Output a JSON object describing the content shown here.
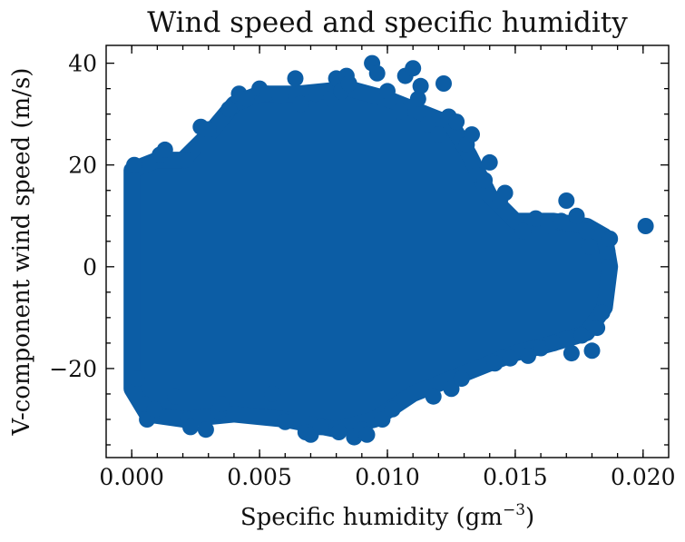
{
  "chart_data": {
    "type": "scatter",
    "title": "Wind speed and specific humidity",
    "xlabel_main": "Specific humidity (gm",
    "xlabel_sup": "−3",
    "xlabel_close": ")",
    "ylabel": "V-component wind speed (m/s)",
    "xlim": [
      -0.001,
      0.021
    ],
    "ylim": [
      -37.5,
      43.5
    ],
    "x_ticks": [
      0.0,
      0.005,
      0.01,
      0.015,
      0.02
    ],
    "x_tick_labels": [
      "0.000",
      "0.005",
      "0.010",
      "0.015",
      "0.020"
    ],
    "y_ticks": [
      -20,
      0,
      20,
      40
    ],
    "y_tick_labels": [
      "−20",
      "0",
      "20",
      "40"
    ],
    "grid": false,
    "legend": "none",
    "marker_color": "#0c5da5",
    "series": [
      {
        "points": [
          [
            0.0001,
            20.0
          ],
          [
            0.0002,
            -22.0
          ],
          [
            0.0005,
            -27.0
          ],
          [
            0.0006,
            -30.0
          ],
          [
            0.0009,
            -28.0
          ],
          [
            0.0011,
            22.0
          ],
          [
            0.0013,
            23.0
          ],
          [
            0.0014,
            -29.5
          ],
          [
            0.0017,
            -25.5
          ],
          [
            0.0021,
            21.0
          ],
          [
            0.0022,
            -30.0
          ],
          [
            0.0023,
            -31.5
          ],
          [
            0.0027,
            27.5
          ],
          [
            0.0029,
            -32.0
          ],
          [
            0.003,
            27.0
          ],
          [
            0.0034,
            -28.5
          ],
          [
            0.0035,
            -27.0
          ],
          [
            0.0038,
            31.0
          ],
          [
            0.0042,
            34.0
          ],
          [
            0.0045,
            33.0
          ],
          [
            0.005,
            35.0
          ],
          [
            0.0053,
            34.0
          ],
          [
            0.0055,
            -25.0
          ],
          [
            0.0058,
            33.5
          ],
          [
            0.006,
            -30.5
          ],
          [
            0.0064,
            37.0
          ],
          [
            0.0066,
            32.0
          ],
          [
            0.0068,
            -32.5
          ],
          [
            0.007,
            -33.0
          ],
          [
            0.0072,
            34.0
          ],
          [
            0.0074,
            -31.5
          ],
          [
            0.0078,
            33.0
          ],
          [
            0.008,
            37.0
          ],
          [
            0.0081,
            -32.5
          ],
          [
            0.0082,
            34.5
          ],
          [
            0.0084,
            37.5
          ],
          [
            0.0085,
            36.0
          ],
          [
            0.0087,
            -33.5
          ],
          [
            0.009,
            -32.0
          ],
          [
            0.0092,
            -33.0
          ],
          [
            0.0094,
            40.0
          ],
          [
            0.0096,
            38.0
          ],
          [
            0.0098,
            -30.0
          ],
          [
            0.01,
            34.5
          ],
          [
            0.0102,
            -28.0
          ],
          [
            0.0105,
            30.5
          ],
          [
            0.0107,
            37.5
          ],
          [
            0.011,
            39.0
          ],
          [
            0.0112,
            33.0
          ],
          [
            0.0113,
            35.5
          ],
          [
            0.0116,
            28.0
          ],
          [
            0.0118,
            -25.5
          ],
          [
            0.012,
            26.0
          ],
          [
            0.0122,
            36.0
          ],
          [
            0.0124,
            29.5
          ],
          [
            0.0125,
            -24.0
          ],
          [
            0.0127,
            28.5
          ],
          [
            0.0129,
            -22.0
          ],
          [
            0.0131,
            24.0
          ],
          [
            0.0133,
            26.0
          ],
          [
            0.0135,
            18.0
          ],
          [
            0.0138,
            17.0
          ],
          [
            0.014,
            20.5
          ],
          [
            0.0142,
            -19.0
          ],
          [
            0.0144,
            13.0
          ],
          [
            0.0146,
            14.5
          ],
          [
            0.0148,
            -18.0
          ],
          [
            0.015,
            9.0
          ],
          [
            0.0153,
            7.0
          ],
          [
            0.0155,
            -17.5
          ],
          [
            0.0158,
            9.5
          ],
          [
            0.016,
            -16.0
          ],
          [
            0.0163,
            8.0
          ],
          [
            0.0165,
            -15.0
          ],
          [
            0.0168,
            9.0
          ],
          [
            0.017,
            13.0
          ],
          [
            0.0172,
            -17.0
          ],
          [
            0.0174,
            10.0
          ],
          [
            0.0176,
            -13.5
          ],
          [
            0.0178,
            7.0
          ],
          [
            0.0179,
            4.0
          ],
          [
            0.018,
            -16.5
          ],
          [
            0.0182,
            -12.0
          ],
          [
            0.0184,
            -9.0
          ],
          [
            0.0186,
            3.0
          ],
          [
            0.0187,
            5.5
          ],
          [
            0.0201,
            8.0
          ]
        ]
      }
    ]
  }
}
